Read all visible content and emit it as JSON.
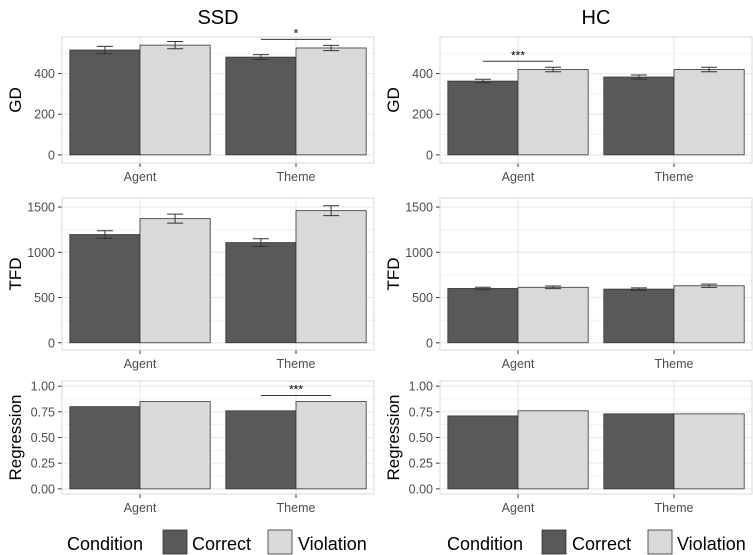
{
  "colors": {
    "Correct": "#595959",
    "Violation": "#d9d9d9",
    "panel_border": "#d9d9d9",
    "grid": "#ebebeb",
    "bar_border": "#333333",
    "tick_text": "#4d4d4d"
  },
  "legend": {
    "title": "Condition",
    "items": [
      "Correct",
      "Violation"
    ]
  },
  "chart_data": [
    {
      "type": "bar",
      "title": "SSD",
      "ylabel": "GD",
      "xlabel": "",
      "categories": [
        "Agent",
        "Theme"
      ],
      "ylim": [
        -40,
        580
      ],
      "yticks": [
        "0",
        "200",
        "400"
      ],
      "grid": true,
      "series": [
        {
          "name": "Correct",
          "values": [
            516,
            481
          ],
          "errors": [
            18,
            12
          ]
        },
        {
          "name": "Violation",
          "values": [
            540,
            526
          ],
          "errors": [
            18,
            13
          ]
        }
      ],
      "significance": [
        {
          "category": "Theme",
          "label": "*"
        }
      ]
    },
    {
      "type": "bar",
      "title": "HC",
      "ylabel": "GD",
      "xlabel": "",
      "categories": [
        "Agent",
        "Theme"
      ],
      "ylim": [
        -40,
        580
      ],
      "yticks": [
        "0",
        "200",
        "400"
      ],
      "grid": true,
      "series": [
        {
          "name": "Correct",
          "values": [
            363,
            383
          ],
          "errors": [
            9,
            10
          ]
        },
        {
          "name": "Violation",
          "values": [
            420,
            420
          ],
          "errors": [
            11,
            11
          ]
        }
      ],
      "significance": [
        {
          "category": "Agent",
          "label": "***"
        }
      ]
    },
    {
      "type": "bar",
      "title": "",
      "ylabel": "TFD",
      "xlabel": "",
      "categories": [
        "Agent",
        "Theme"
      ],
      "ylim": [
        -80,
        1600
      ],
      "yticks": [
        "0",
        "500",
        "1000",
        "1500"
      ],
      "grid": true,
      "series": [
        {
          "name": "Correct",
          "values": [
            1196,
            1107
          ],
          "errors": [
            42,
            42
          ]
        },
        {
          "name": "Violation",
          "values": [
            1372,
            1460
          ],
          "errors": [
            50,
            55
          ]
        }
      ],
      "significance": []
    },
    {
      "type": "bar",
      "title": "",
      "ylabel": "TFD",
      "xlabel": "",
      "categories": [
        "Agent",
        "Theme"
      ],
      "ylim": [
        -80,
        1600
      ],
      "yticks": [
        "0",
        "500",
        "1000",
        "1500"
      ],
      "grid": true,
      "series": [
        {
          "name": "Correct",
          "values": [
            600,
            593
          ],
          "errors": [
            14,
            13
          ]
        },
        {
          "name": "Violation",
          "values": [
            613,
            630
          ],
          "errors": [
            14,
            18
          ]
        }
      ],
      "significance": []
    },
    {
      "type": "bar",
      "title": "",
      "ylabel": "Regression",
      "xlabel": "",
      "categories": [
        "Agent",
        "Theme"
      ],
      "ylim": [
        -0.05,
        1.05
      ],
      "yticks": [
        "0.00",
        "0.25",
        "0.50",
        "0.75",
        "1.00"
      ],
      "grid": true,
      "series": [
        {
          "name": "Correct",
          "values": [
            0.8,
            0.76
          ]
        },
        {
          "name": "Violation",
          "values": [
            0.85,
            0.85
          ]
        }
      ],
      "significance": [
        {
          "category": "Theme",
          "label": "***"
        }
      ]
    },
    {
      "type": "bar",
      "title": "",
      "ylabel": "Regression",
      "xlabel": "",
      "categories": [
        "Agent",
        "Theme"
      ],
      "ylim": [
        -0.05,
        1.05
      ],
      "yticks": [
        "0.00",
        "0.25",
        "0.50",
        "0.75",
        "1.00"
      ],
      "grid": true,
      "series": [
        {
          "name": "Correct",
          "values": [
            0.71,
            0.73
          ]
        },
        {
          "name": "Violation",
          "values": [
            0.76,
            0.73
          ]
        }
      ],
      "significance": []
    }
  ]
}
